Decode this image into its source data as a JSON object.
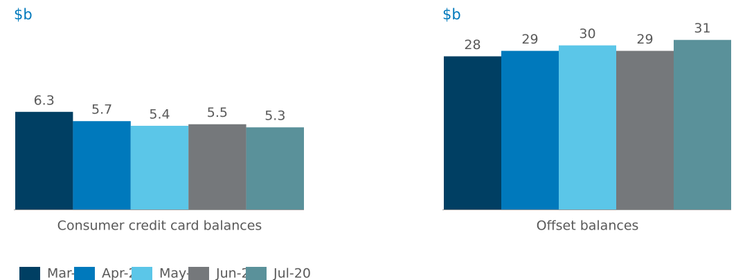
{
  "chart_data": [
    {
      "type": "bar",
      "ylabel": "$b",
      "xlabel": "Consumer credit card balances",
      "values": [
        6.3,
        5.7,
        5.4,
        5.5,
        5.3
      ],
      "ylim": [
        0,
        12
      ]
    },
    {
      "type": "bar",
      "ylabel": "$b",
      "xlabel": "Offset balances",
      "values": [
        28,
        29,
        30,
        29,
        31
      ],
      "ylim": [
        0,
        34
      ]
    }
  ],
  "legend": {
    "labels": [
      "Mar-20",
      "Apr-20",
      "May-20",
      "Jun-20",
      "Jul-20"
    ],
    "colors": [
      "#003f63",
      "#0079bc",
      "#5bc6e8",
      "#75787b",
      "#5a919a"
    ]
  }
}
